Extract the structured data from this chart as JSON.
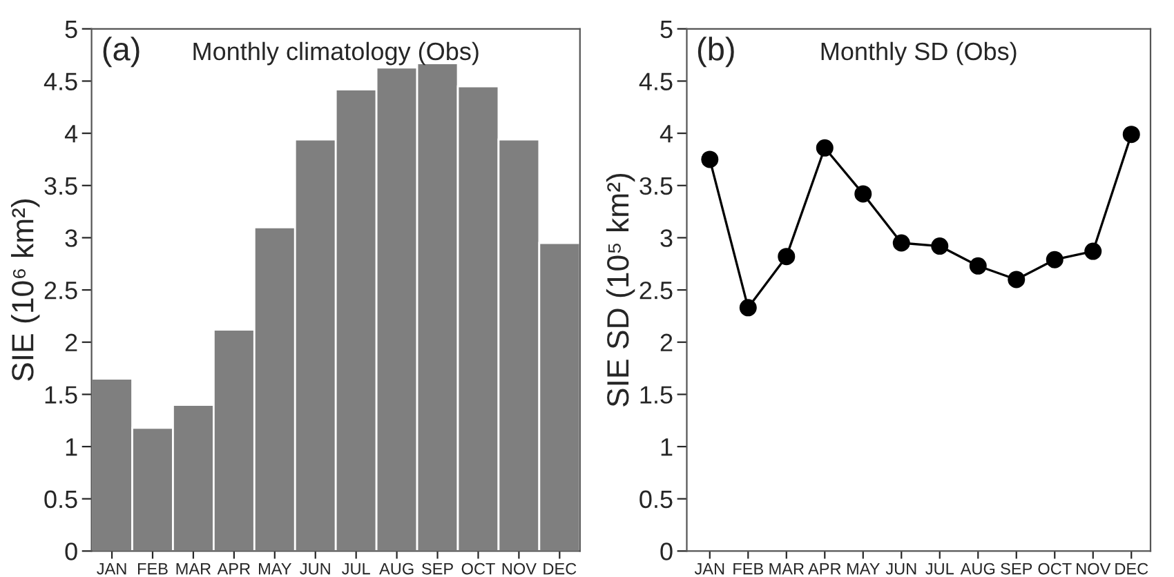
{
  "chart_data": [
    {
      "type": "bar",
      "title": "Monthly climatology (Obs)",
      "annotations": [
        "(a)"
      ],
      "ylabel": "SIE (10⁶ km²)",
      "categories": [
        "JAN",
        "FEB",
        "MAR",
        "APR",
        "MAY",
        "JUN",
        "JUL",
        "AUG",
        "SEP",
        "OCT",
        "NOV",
        "DEC"
      ],
      "values": [
        1.65,
        1.18,
        1.4,
        2.12,
        3.1,
        3.94,
        4.42,
        4.63,
        4.67,
        4.45,
        3.94,
        2.95
      ],
      "color": "#7f7f7f",
      "ylim": [
        0,
        5
      ],
      "yticks": [
        0,
        0.5,
        1,
        1.5,
        2,
        2.5,
        3,
        3.5,
        4,
        4.5,
        5
      ],
      "grid": false,
      "legend": false
    },
    {
      "type": "line",
      "title": "Monthly SD (Obs)",
      "annotations": [
        "(b)"
      ],
      "ylabel": "SIE SD (10⁵ km²)",
      "categories": [
        "JAN",
        "FEB",
        "MAR",
        "APR",
        "MAY",
        "JUN",
        "JUL",
        "AUG",
        "SEP",
        "OCT",
        "NOV",
        "DEC"
      ],
      "values": [
        3.75,
        2.33,
        2.82,
        3.86,
        3.42,
        2.95,
        2.92,
        2.73,
        2.6,
        2.79,
        2.87,
        3.99
      ],
      "color": "#000000",
      "marker": "circle",
      "line_style": "solid",
      "ylim": [
        0,
        5
      ],
      "yticks": [
        0,
        0.5,
        1,
        1.5,
        2,
        2.5,
        3,
        3.5,
        4,
        4.5,
        5
      ],
      "grid": false,
      "legend": false
    }
  ]
}
